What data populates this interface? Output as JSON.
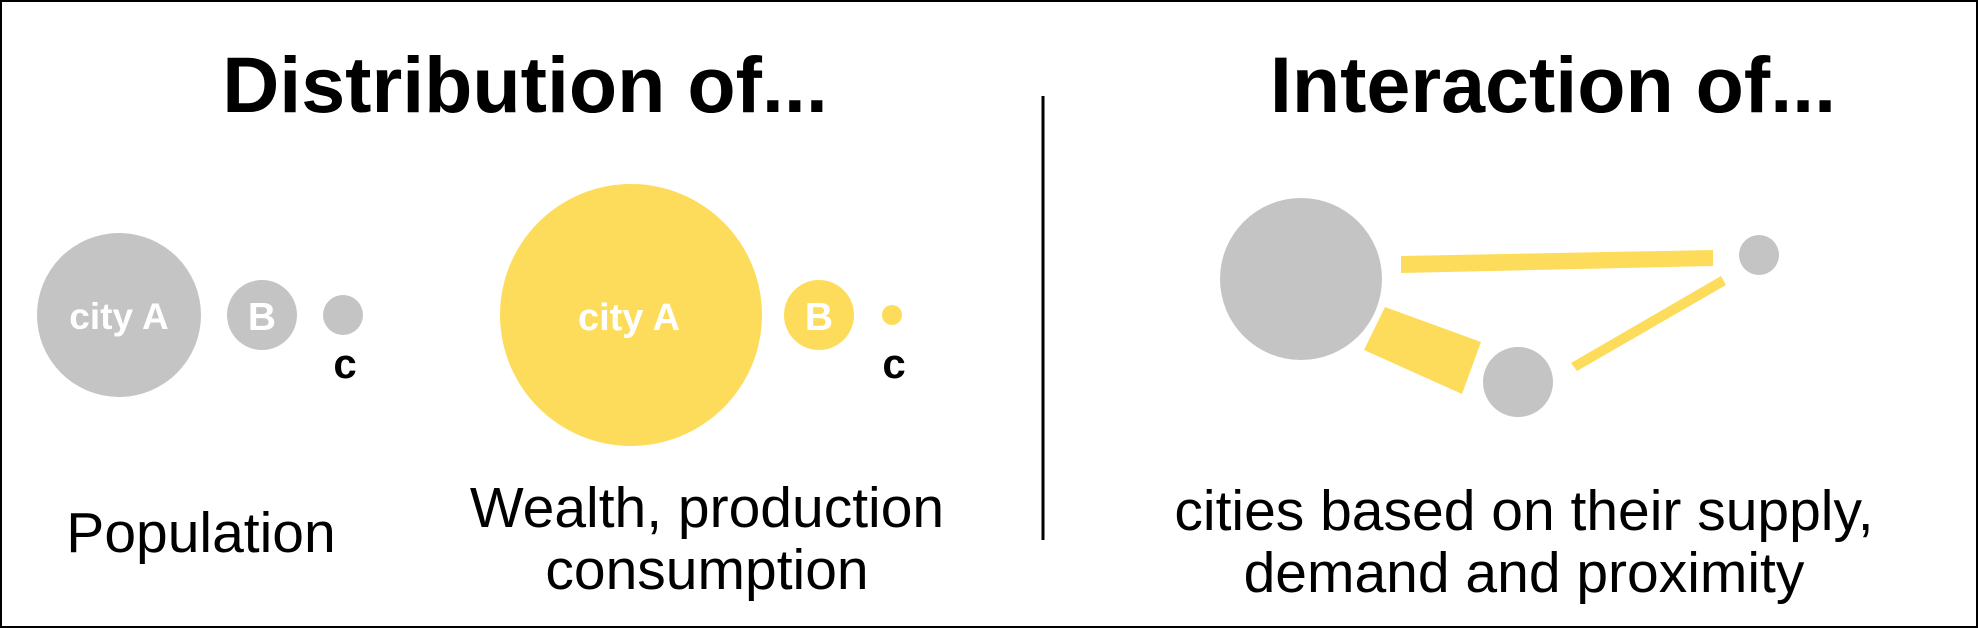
{
  "colors": {
    "gray": "#c4c4c4",
    "yellow": "#fddc5c",
    "text": "#000000",
    "label_on_bubble": "#ffffff",
    "divider": "#000000"
  },
  "left_panel": {
    "heading": "Distribution of...",
    "population_group": {
      "city_a_label": "city A",
      "city_b_label": "B",
      "city_c_label": "c",
      "caption": "Population"
    },
    "wealth_group": {
      "city_a_label": "city A",
      "city_b_label": "B",
      "city_c_label": "c",
      "caption_line1": "Wealth, production",
      "caption_line2": "consumption"
    }
  },
  "right_panel": {
    "heading": "Interaction of...",
    "caption_line1": "cities based on their supply,",
    "caption_line2": "demand and proximity"
  }
}
